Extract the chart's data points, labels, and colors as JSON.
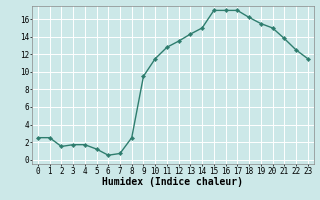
{
  "x": [
    0,
    1,
    2,
    3,
    4,
    5,
    6,
    7,
    8,
    9,
    10,
    11,
    12,
    13,
    14,
    15,
    16,
    17,
    18,
    19,
    20,
    21,
    22,
    23
  ],
  "y": [
    2.5,
    2.5,
    1.5,
    1.7,
    1.7,
    1.2,
    0.5,
    0.7,
    2.5,
    9.5,
    11.5,
    12.8,
    13.5,
    14.3,
    15.0,
    17.0,
    17.0,
    17.0,
    16.2,
    15.5,
    15.0,
    13.8,
    12.5,
    11.5
  ],
  "line_color": "#2e7d6e",
  "marker": "D",
  "marker_size": 2.2,
  "line_width": 1.0,
  "bg_color": "#cce8e8",
  "grid_color": "#ffffff",
  "xlabel": "Humidex (Indice chaleur)",
  "xlabel_fontsize": 7,
  "xlabel_fontweight": "bold",
  "xlim": [
    -0.5,
    23.5
  ],
  "ylim": [
    -0.5,
    17.5
  ],
  "yticks": [
    0,
    2,
    4,
    6,
    8,
    10,
    12,
    14,
    16
  ],
  "xticks": [
    0,
    1,
    2,
    3,
    4,
    5,
    6,
    7,
    8,
    9,
    10,
    11,
    12,
    13,
    14,
    15,
    16,
    17,
    18,
    19,
    20,
    21,
    22,
    23
  ],
  "tick_fontsize": 5.5,
  "spine_color": "#888888"
}
